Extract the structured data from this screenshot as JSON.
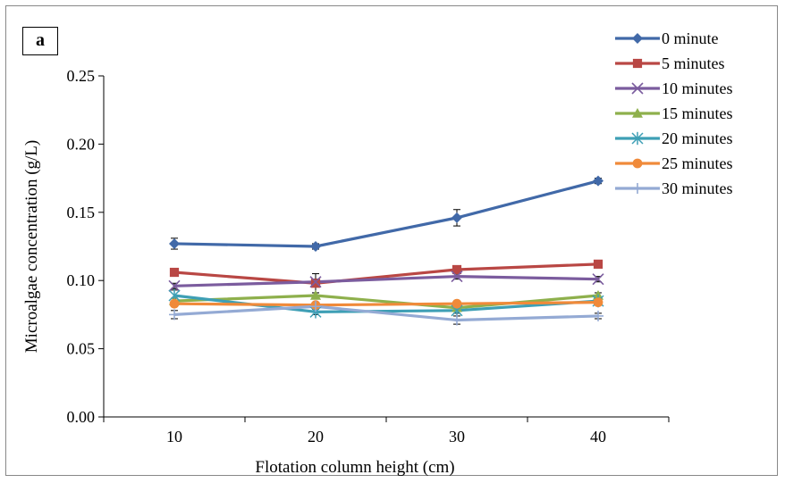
{
  "panel_label": "a",
  "chart_data": {
    "type": "line",
    "title": "",
    "xlabel": "Flotation column height (cm)",
    "ylabel": "Microalgae concentration (g/L)",
    "categories": [
      "10",
      "20",
      "30",
      "40"
    ],
    "ylim": [
      0,
      0.25
    ],
    "yticks": [
      "0.00",
      "0.05",
      "0.10",
      "0.15",
      "0.20",
      "0.25"
    ],
    "grid": false,
    "legend_position": "top-right",
    "series": [
      {
        "name": "0 minute",
        "color": "#4169a8",
        "marker": "diamond",
        "values": [
          0.127,
          0.125,
          0.146,
          0.173
        ],
        "errors": [
          0.004,
          0.002,
          0.006,
          0.002
        ]
      },
      {
        "name": "5 minutes",
        "color": "#b94744",
        "marker": "square",
        "values": [
          0.106,
          0.098,
          0.108,
          0.112
        ],
        "errors": [
          0.002,
          0.007,
          0.002,
          0.002
        ]
      },
      {
        "name": "10 minutes",
        "color": "#7b5c9e",
        "marker": "x",
        "values": [
          0.096,
          0.099,
          0.103,
          0.101
        ],
        "errors": [
          0.002,
          0.002,
          0.002,
          0.002
        ]
      },
      {
        "name": "15 minutes",
        "color": "#8eb04c",
        "marker": "triangle",
        "values": [
          0.085,
          0.089,
          0.08,
          0.089
        ],
        "errors": [
          0.002,
          0.002,
          0.002,
          0.002
        ]
      },
      {
        "name": "20 minutes",
        "color": "#3e9fb5",
        "marker": "asterisk",
        "values": [
          0.089,
          0.077,
          0.078,
          0.085
        ],
        "errors": [
          0.004,
          0.002,
          0.002,
          0.002
        ]
      },
      {
        "name": "25 minutes",
        "color": "#f08a3a",
        "marker": "circle",
        "values": [
          0.083,
          0.082,
          0.083,
          0.084
        ],
        "errors": [
          0.002,
          0.002,
          0.002,
          0.002
        ]
      },
      {
        "name": "30 minutes",
        "color": "#94aad4",
        "marker": "plus",
        "values": [
          0.075,
          0.081,
          0.071,
          0.074
        ],
        "errors": [
          0.003,
          0.002,
          0.003,
          0.002
        ]
      }
    ]
  }
}
